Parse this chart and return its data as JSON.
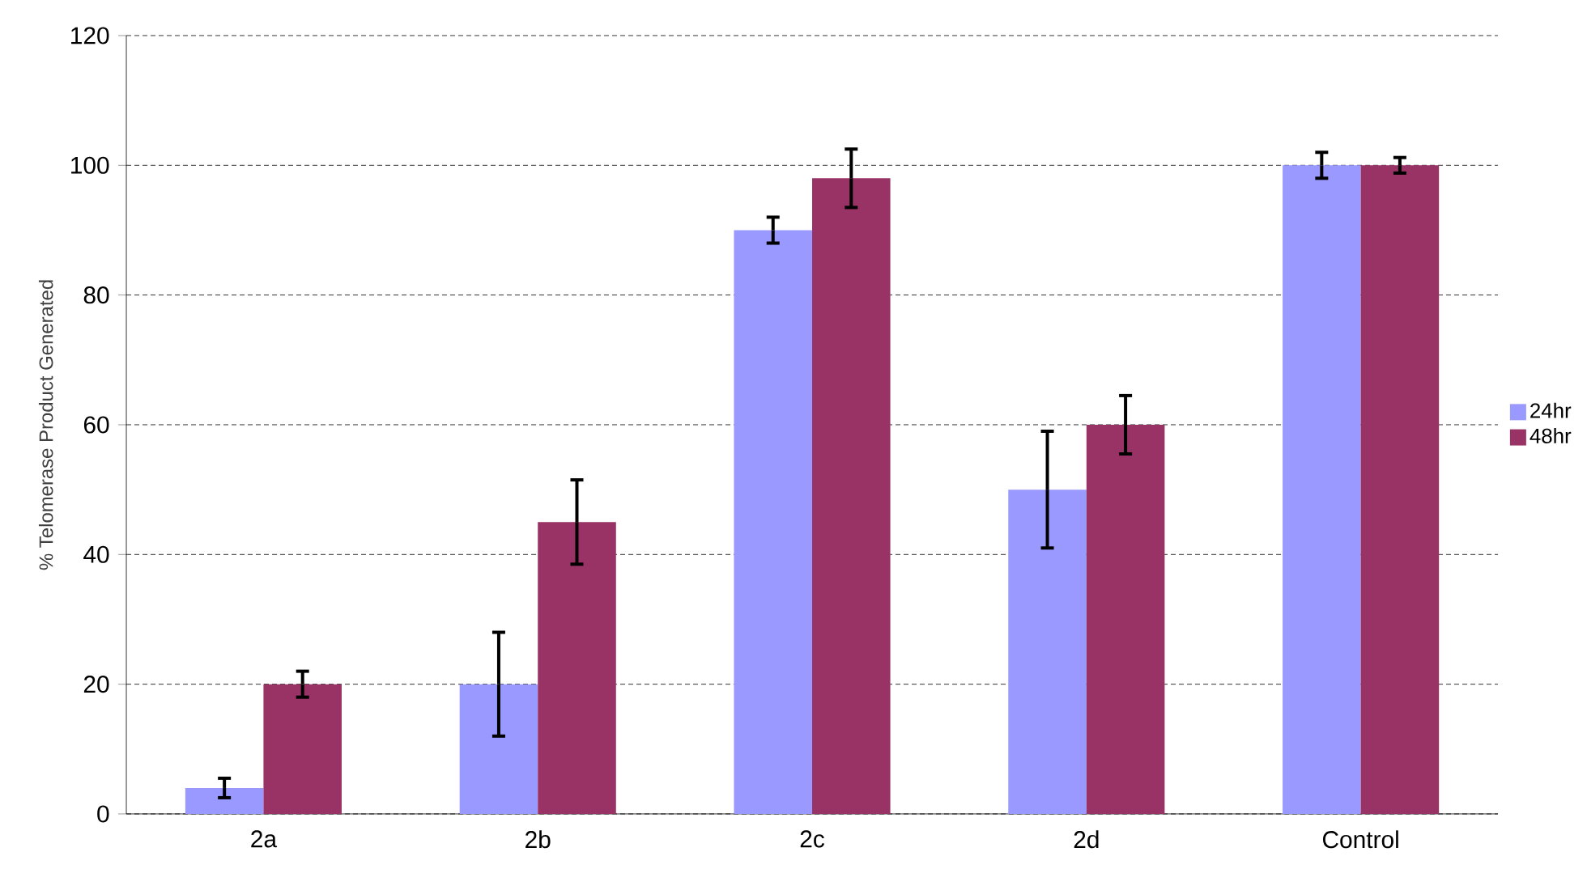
{
  "chart_data": {
    "type": "bar",
    "ylabel": "% Telomerase Product Generated",
    "categories": [
      "2a",
      "2b",
      "2c",
      "2d",
      "Control"
    ],
    "series": [
      {
        "name": "24hr",
        "color": "#9999ff",
        "values": [
          4,
          20,
          90,
          50,
          100
        ],
        "errors": [
          1.5,
          8,
          2,
          9,
          2
        ]
      },
      {
        "name": "48hr",
        "color": "#993366",
        "values": [
          20,
          45,
          98,
          60,
          100
        ],
        "errors": [
          2,
          6.5,
          4.5,
          4.5,
          1.2
        ]
      }
    ],
    "ylim": [
      0,
      120
    ],
    "yticks": [
      0,
      20,
      40,
      60,
      80,
      100,
      120
    ],
    "grid": "y",
    "legend": "right"
  }
}
